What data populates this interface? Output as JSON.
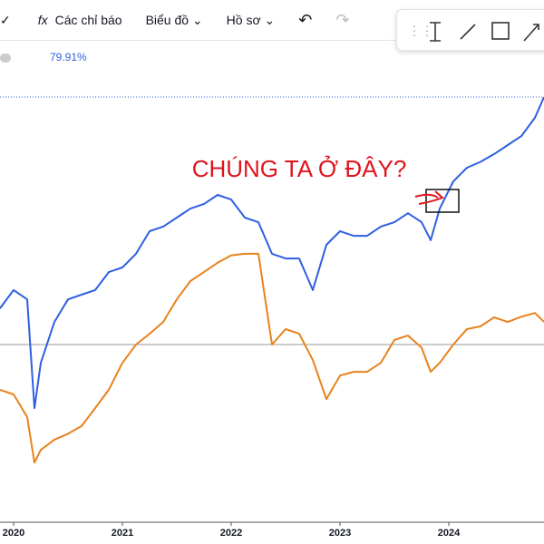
{
  "toolbar": {
    "indicators": "Các chỉ báo",
    "chart_menu": "Biểu đồ",
    "profile_menu": "Hồ sơ"
  },
  "chart_data": {
    "type": "line",
    "annotation": "CHÚNG TA Ở ĐÂY?",
    "legend_value": "79.91%",
    "reference_line": 0,
    "x": [
      2019.875,
      2020,
      2020.125,
      2020.192,
      2020.25,
      2020.375,
      2020.5,
      2020.625,
      2020.75,
      2020.875,
      2021,
      2021.125,
      2021.25,
      2021.375,
      2021.5,
      2021.625,
      2021.75,
      2021.875,
      2022,
      2022.125,
      2022.25,
      2022.375,
      2022.5,
      2022.625,
      2022.75,
      2022.875,
      2023,
      2023.125,
      2023.25,
      2023.375,
      2023.5,
      2023.625,
      2023.75,
      2023.833,
      2023.917,
      2024.042,
      2024.167,
      2024.292,
      2024.417,
      2024.542,
      2024.667,
      2024.792,
      2024.875
    ],
    "series": [
      {
        "color": "#2f5fe0",
        "values": [
          11.7,
          17.6,
          14.6,
          -20.5,
          -5.9,
          7.3,
          14.6,
          16.1,
          17.6,
          23.4,
          24.9,
          29.3,
          36.6,
          38.1,
          41.0,
          43.9,
          45.4,
          48.3,
          46.8,
          41.0,
          39.5,
          29.3,
          27.8,
          27.8,
          17.6,
          32.2,
          36.6,
          35.1,
          35.1,
          38.1,
          39.5,
          42.4,
          39.5,
          33.7,
          43.9,
          52.7,
          57.1,
          59.0,
          61.5,
          64.4,
          67.3,
          73.2,
          79.91
        ]
      },
      {
        "color": "#e8821c",
        "values": [
          -14.6,
          -16.1,
          -23.4,
          -38.1,
          -34.0,
          -30.7,
          -28.8,
          -26.3,
          -20.5,
          -14.6,
          -5.9,
          0.0,
          3.5,
          7.3,
          14.6,
          20.5,
          23.4,
          26.4,
          28.8,
          29.3,
          29.3,
          0.0,
          5.0,
          3.5,
          -5.0,
          -17.6,
          -10.0,
          -8.8,
          -8.8,
          -5.9,
          1.5,
          2.9,
          -1.0,
          -8.8,
          -5.9,
          0.0,
          5.0,
          5.9,
          8.8,
          7.3,
          9.0,
          10.2,
          7.3
        ]
      }
    ],
    "xlim": [
      2019.875,
      2024.875
    ],
    "xticks": [
      2020,
      2021,
      2022,
      2023,
      2024
    ],
    "ylim": [
      -55.6,
      96.6
    ]
  }
}
